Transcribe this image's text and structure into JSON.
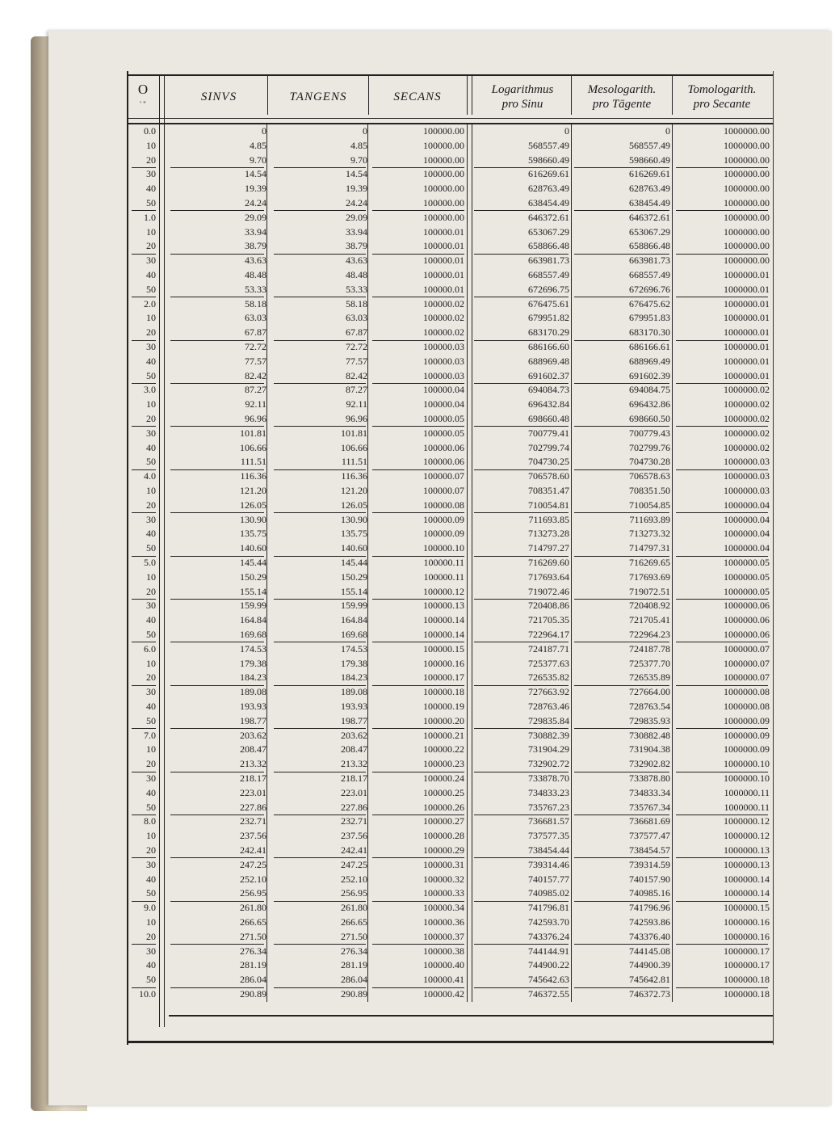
{
  "header": {
    "degree_symbol": "O",
    "minute_symbol": "' \"",
    "sinus": "SINVS",
    "tangens": "TANGENS",
    "secans": "SECANS",
    "log_sinus_line1": "Logarithmus",
    "log_sinus_line2": "pro Sinu",
    "meso_line1": "Mesologarith.",
    "meso_line2": "pro Tāgente",
    "tomo_line1": "Tomologarith.",
    "tomo_line2": "pro Secante"
  },
  "rows": [
    [
      "0.0",
      "0",
      "0",
      "100000.00",
      "0",
      "0",
      "1000000.00"
    ],
    [
      "10",
      "4.85",
      "4.85",
      "100000.00",
      "568557.49",
      "568557.49",
      "1000000.00"
    ],
    [
      "20",
      "9.70",
      "9.70",
      "100000.00",
      "598660.49",
      "598660.49",
      "1000000.00"
    ],
    [
      "30",
      "14.54",
      "14.54",
      "100000.00",
      "616269.61",
      "616269.61",
      "1000000.00"
    ],
    [
      "40",
      "19.39",
      "19.39",
      "100000.00",
      "628763.49",
      "628763.49",
      "1000000.00"
    ],
    [
      "50",
      "24.24",
      "24.24",
      "100000.00",
      "638454.49",
      "638454.49",
      "1000000.00"
    ],
    [
      "1.0",
      "29.09",
      "29.09",
      "100000.00",
      "646372.61",
      "646372.61",
      "1000000.00"
    ],
    [
      "10",
      "33.94",
      "33.94",
      "100000.01",
      "653067.29",
      "653067.29",
      "1000000.00"
    ],
    [
      "20",
      "38.79",
      "38.79",
      "100000.01",
      "658866.48",
      "658866.48",
      "1000000.00"
    ],
    [
      "30",
      "43.63",
      "43.63",
      "100000.01",
      "663981.73",
      "663981.73",
      "1000000.00"
    ],
    [
      "40",
      "48.48",
      "48.48",
      "100000.01",
      "668557.49",
      "668557.49",
      "1000000.01"
    ],
    [
      "50",
      "53.33",
      "53.33",
      "100000.01",
      "672696.75",
      "672696.76",
      "1000000.01"
    ],
    [
      "2.0",
      "58.18",
      "58.18",
      "100000.02",
      "676475.61",
      "676475.62",
      "1000000.01"
    ],
    [
      "10",
      "63.03",
      "63.03",
      "100000.02",
      "679951.82",
      "679951.83",
      "1000000.01"
    ],
    [
      "20",
      "67.87",
      "67.87",
      "100000.02",
      "683170.29",
      "683170.30",
      "1000000.01"
    ],
    [
      "30",
      "72.72",
      "72.72",
      "100000.03",
      "686166.60",
      "686166.61",
      "1000000.01"
    ],
    [
      "40",
      "77.57",
      "77.57",
      "100000.03",
      "688969.48",
      "688969.49",
      "1000000.01"
    ],
    [
      "50",
      "82.42",
      "82.42",
      "100000.03",
      "691602.37",
      "691602.39",
      "1000000.01"
    ],
    [
      "3.0",
      "87.27",
      "87.27",
      "100000.04",
      "694084.73",
      "694084.75",
      "1000000.02"
    ],
    [
      "10",
      "92.11",
      "92.11",
      "100000.04",
      "696432.84",
      "696432.86",
      "1000000.02"
    ],
    [
      "20",
      "96.96",
      "96.96",
      "100000.05",
      "698660.48",
      "698660.50",
      "1000000.02"
    ],
    [
      "30",
      "101.81",
      "101.81",
      "100000.05",
      "700779.41",
      "700779.43",
      "1000000.02"
    ],
    [
      "40",
      "106.66",
      "106.66",
      "100000.06",
      "702799.74",
      "702799.76",
      "1000000.02"
    ],
    [
      "50",
      "111.51",
      "111.51",
      "100000.06",
      "704730.25",
      "704730.28",
      "1000000.03"
    ],
    [
      "4.0",
      "116.36",
      "116.36",
      "100000.07",
      "706578.60",
      "706578.63",
      "1000000.03"
    ],
    [
      "10",
      "121.20",
      "121.20",
      "100000.07",
      "708351.47",
      "708351.50",
      "1000000.03"
    ],
    [
      "20",
      "126.05",
      "126.05",
      "100000.08",
      "710054.81",
      "710054.85",
      "1000000.04"
    ],
    [
      "30",
      "130.90",
      "130.90",
      "100000.09",
      "711693.85",
      "711693.89",
      "1000000.04"
    ],
    [
      "40",
      "135.75",
      "135.75",
      "100000.09",
      "713273.28",
      "713273.32",
      "1000000.04"
    ],
    [
      "50",
      "140.60",
      "140.60",
      "100000.10",
      "714797.27",
      "714797.31",
      "1000000.04"
    ],
    [
      "5.0",
      "145.44",
      "145.44",
      "100000.11",
      "716269.60",
      "716269.65",
      "1000000.05"
    ],
    [
      "10",
      "150.29",
      "150.29",
      "100000.11",
      "717693.64",
      "717693.69",
      "1000000.05"
    ],
    [
      "20",
      "155.14",
      "155.14",
      "100000.12",
      "719072.46",
      "719072.51",
      "1000000.05"
    ],
    [
      "30",
      "159.99",
      "159.99",
      "100000.13",
      "720408.86",
      "720408.92",
      "1000000.06"
    ],
    [
      "40",
      "164.84",
      "164.84",
      "100000.14",
      "721705.35",
      "721705.41",
      "1000000.06"
    ],
    [
      "50",
      "169.68",
      "169.68",
      "100000.14",
      "722964.17",
      "722964.23",
      "1000000.06"
    ],
    [
      "6.0",
      "174.53",
      "174.53",
      "100000.15",
      "724187.71",
      "724187.78",
      "1000000.07"
    ],
    [
      "10",
      "179.38",
      "179.38",
      "100000.16",
      "725377.63",
      "725377.70",
      "1000000.07"
    ],
    [
      "20",
      "184.23",
      "184.23",
      "100000.17",
      "726535.82",
      "726535.89",
      "1000000.07"
    ],
    [
      "30",
      "189.08",
      "189.08",
      "100000.18",
      "727663.92",
      "727664.00",
      "1000000.08"
    ],
    [
      "40",
      "193.93",
      "193.93",
      "100000.19",
      "728763.46",
      "728763.54",
      "1000000.08"
    ],
    [
      "50",
      "198.77",
      "198.77",
      "100000.20",
      "729835.84",
      "729835.93",
      "1000000.09"
    ],
    [
      "7.0",
      "203.62",
      "203.62",
      "100000.21",
      "730882.39",
      "730882.48",
      "1000000.09"
    ],
    [
      "10",
      "208.47",
      "208.47",
      "100000.22",
      "731904.29",
      "731904.38",
      "1000000.09"
    ],
    [
      "20",
      "213.32",
      "213.32",
      "100000.23",
      "732902.72",
      "732902.82",
      "1000000.10"
    ],
    [
      "30",
      "218.17",
      "218.17",
      "100000.24",
      "733878.70",
      "733878.80",
      "1000000.10"
    ],
    [
      "40",
      "223.01",
      "223.01",
      "100000.25",
      "734833.23",
      "734833.34",
      "1000000.11"
    ],
    [
      "50",
      "227.86",
      "227.86",
      "100000.26",
      "735767.23",
      "735767.34",
      "1000000.11"
    ],
    [
      "8.0",
      "232.71",
      "232.71",
      "100000.27",
      "736681.57",
      "736681.69",
      "1000000.12"
    ],
    [
      "10",
      "237.56",
      "237.56",
      "100000.28",
      "737577.35",
      "737577.47",
      "1000000.12"
    ],
    [
      "20",
      "242.41",
      "242.41",
      "100000.29",
      "738454.44",
      "738454.57",
      "1000000.13"
    ],
    [
      "30",
      "247.25",
      "247.25",
      "100000.31",
      "739314.46",
      "739314.59",
      "1000000.13"
    ],
    [
      "40",
      "252.10",
      "252.10",
      "100000.32",
      "740157.77",
      "740157.90",
      "1000000.14"
    ],
    [
      "50",
      "256.95",
      "256.95",
      "100000.33",
      "740985.02",
      "740985.16",
      "1000000.14"
    ],
    [
      "9.0",
      "261.80",
      "261.80",
      "100000.34",
      "741796.81",
      "741796.96",
      "1000000.15"
    ],
    [
      "10",
      "266.65",
      "266.65",
      "100000.36",
      "742593.70",
      "742593.86",
      "1000000.16"
    ],
    [
      "20",
      "271.50",
      "271.50",
      "100000.37",
      "743376.24",
      "743376.40",
      "1000000.16"
    ],
    [
      "30",
      "276.34",
      "276.34",
      "100000.38",
      "744144.91",
      "744145.08",
      "1000000.17"
    ],
    [
      "40",
      "281.19",
      "281.19",
      "100000.40",
      "744900.22",
      "744900.39",
      "1000000.17"
    ],
    [
      "50",
      "286.04",
      "286.04",
      "100000.41",
      "745642.63",
      "745642.81",
      "1000000.18"
    ],
    [
      "10.0",
      "290.89",
      "290.89",
      "100000.42",
      "746372.55",
      "746372.73",
      "1000000.18"
    ]
  ]
}
